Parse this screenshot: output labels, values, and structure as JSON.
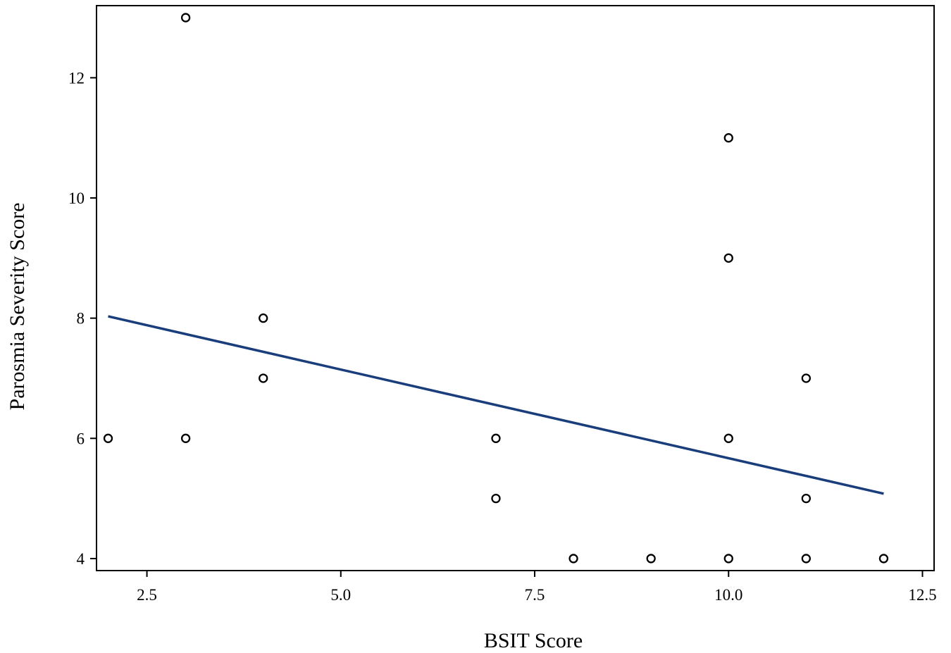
{
  "chart_data": {
    "type": "scatter",
    "title": "",
    "xlabel": "BSIT Score",
    "ylabel": "Parosmia Severity Score",
    "xlim": [
      1.85,
      12.65
    ],
    "ylim": [
      3.8,
      13.2
    ],
    "xticks": [
      2.5,
      5.0,
      7.5,
      10.0,
      12.5
    ],
    "xtick_labels": [
      "2.5",
      "5.0",
      "7.5",
      "10.0",
      "12.5"
    ],
    "yticks": [
      4,
      6,
      8,
      10,
      12
    ],
    "ytick_labels": [
      "4",
      "6",
      "8",
      "10",
      "12"
    ],
    "grid": false,
    "series": [
      {
        "kind": "points",
        "marker": "open-circle",
        "color": "#000000",
        "points": [
          {
            "x": 2,
            "y": 6
          },
          {
            "x": 3,
            "y": 13
          },
          {
            "x": 3,
            "y": 6
          },
          {
            "x": 4,
            "y": 8
          },
          {
            "x": 4,
            "y": 7
          },
          {
            "x": 7,
            "y": 6
          },
          {
            "x": 7,
            "y": 5
          },
          {
            "x": 8,
            "y": 4
          },
          {
            "x": 9,
            "y": 4
          },
          {
            "x": 10,
            "y": 11
          },
          {
            "x": 10,
            "y": 9
          },
          {
            "x": 10,
            "y": 6
          },
          {
            "x": 10,
            "y": 4
          },
          {
            "x": 11,
            "y": 7
          },
          {
            "x": 11,
            "y": 5
          },
          {
            "x": 11,
            "y": 4
          },
          {
            "x": 12,
            "y": 4
          }
        ]
      },
      {
        "kind": "fit-line",
        "color": "#1a3d7c",
        "points": [
          {
            "x": 2,
            "y": 8.03
          },
          {
            "x": 12,
            "y": 5.08
          }
        ]
      }
    ]
  }
}
